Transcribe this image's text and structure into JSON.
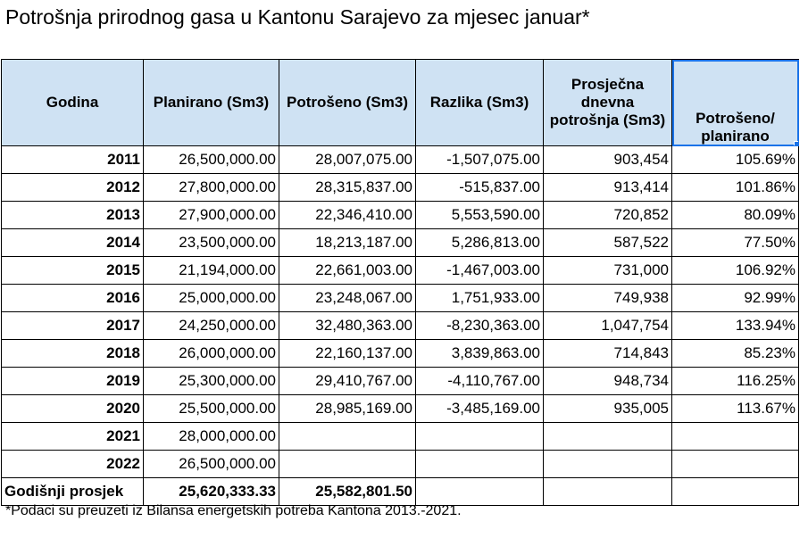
{
  "title": "Potrošnja prirodnog gasa u Kantonu Sarajevo za mjesec januar*",
  "headers": {
    "year": "Godina",
    "planned": "Planirano (Sm3)",
    "consumed": "Potrošeno (Sm3)",
    "difference": "Razlika (Sm3)",
    "daily_avg": "Prosječna dnevna potrošnja (Sm3)",
    "ratio": "Potrošeno/ planirano"
  },
  "rows": [
    {
      "year": "2011",
      "planned": "26,500,000.00",
      "consumed": "28,007,075.00",
      "difference": "-1,507,075.00",
      "daily_avg": "903,454",
      "ratio": "105.69%"
    },
    {
      "year": "2012",
      "planned": "27,800,000.00",
      "consumed": "28,315,837.00",
      "difference": "-515,837.00",
      "daily_avg": "913,414",
      "ratio": "101.86%"
    },
    {
      "year": "2013",
      "planned": "27,900,000.00",
      "consumed": "22,346,410.00",
      "difference": "5,553,590.00",
      "daily_avg": "720,852",
      "ratio": "80.09%"
    },
    {
      "year": "2014",
      "planned": "23,500,000.00",
      "consumed": "18,213,187.00",
      "difference": "5,286,813.00",
      "daily_avg": "587,522",
      "ratio": "77.50%"
    },
    {
      "year": "2015",
      "planned": "21,194,000.00",
      "consumed": "22,661,003.00",
      "difference": "-1,467,003.00",
      "daily_avg": "731,000",
      "ratio": "106.92%"
    },
    {
      "year": "2016",
      "planned": "25,000,000.00",
      "consumed": "23,248,067.00",
      "difference": "1,751,933.00",
      "daily_avg": "749,938",
      "ratio": "92.99%"
    },
    {
      "year": "2017",
      "planned": "24,250,000.00",
      "consumed": "32,480,363.00",
      "difference": "-8,230,363.00",
      "daily_avg": "1,047,754",
      "ratio": "133.94%"
    },
    {
      "year": "2018",
      "planned": "26,000,000.00",
      "consumed": "22,160,137.00",
      "difference": "3,839,863.00",
      "daily_avg": "714,843",
      "ratio": "85.23%"
    },
    {
      "year": "2019",
      "planned": "25,300,000.00",
      "consumed": "29,410,767.00",
      "difference": "-4,110,767.00",
      "daily_avg": "948,734",
      "ratio": "116.25%"
    },
    {
      "year": "2020",
      "planned": "25,500,000.00",
      "consumed": "28,985,169.00",
      "difference": "-3,485,169.00",
      "daily_avg": "935,005",
      "ratio": "113.67%"
    },
    {
      "year": "2021",
      "planned": "28,000,000.00",
      "consumed": "",
      "difference": "",
      "daily_avg": "",
      "ratio": ""
    },
    {
      "year": "2022",
      "planned": "26,500,000.00",
      "consumed": "",
      "difference": "",
      "daily_avg": "",
      "ratio": ""
    }
  ],
  "average": {
    "label": "Godišnji prosjek",
    "planned": "25,620,333.33",
    "consumed": "25,582,801.50"
  },
  "footnote": "*Podaci su preuzeti iz Bilansa energetskih potreba Kantona 2013.-2021.",
  "colors": {
    "header_fill": "#cfe2f3",
    "selection": "#1a73e8"
  }
}
